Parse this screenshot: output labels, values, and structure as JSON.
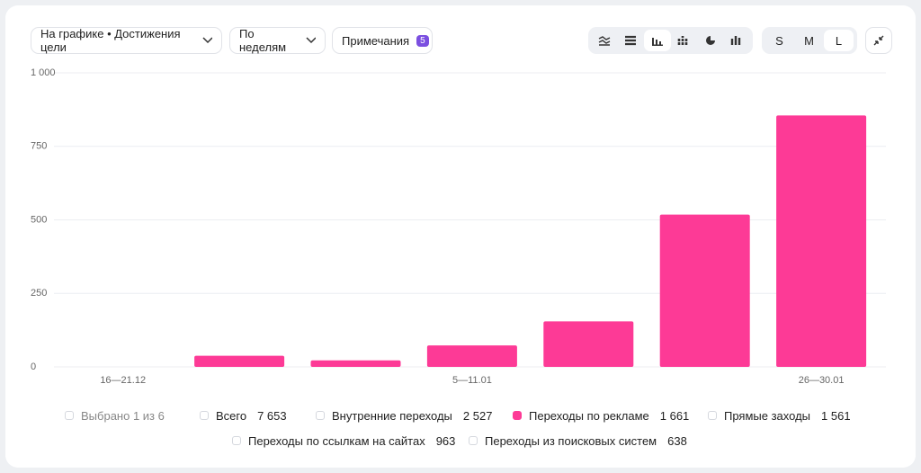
{
  "toolbar": {
    "goal_select": "На графике • Достижения цели",
    "period_select": "По неделям",
    "notes": "Примечания",
    "notes_count": "5",
    "sizes": [
      "S",
      "M",
      "L"
    ],
    "selected_size": 2
  },
  "chart_data": {
    "type": "bar",
    "categories": [
      "16—21.12",
      null,
      null,
      "5—11.01",
      null,
      null,
      "26—30.01"
    ],
    "values": [
      0,
      38,
      22,
      73,
      155,
      518,
      855
    ],
    "color": "#fd3a96",
    "ylim": [
      0,
      1000
    ],
    "yticks": [
      0,
      250,
      500,
      750,
      {
        "value": 1000,
        "label": "1 000"
      }
    ],
    "grid": true
  },
  "legend": {
    "summary": "Выбрано 1 из 6",
    "items": [
      {
        "name": "Всего",
        "total": "7 653",
        "checked": false
      },
      {
        "name": "Внутренние переходы",
        "total": "2 527",
        "checked": false
      },
      {
        "name": "Переходы по рекламе",
        "total": "1 661",
        "checked": true
      },
      {
        "name": "Прямые заходы",
        "total": "1 561",
        "checked": false
      },
      {
        "name": "Переходы по ссылкам на сайтах",
        "total": "963",
        "checked": false
      },
      {
        "name": "Переходы из поисковых систем",
        "total": "638",
        "checked": false
      }
    ]
  }
}
